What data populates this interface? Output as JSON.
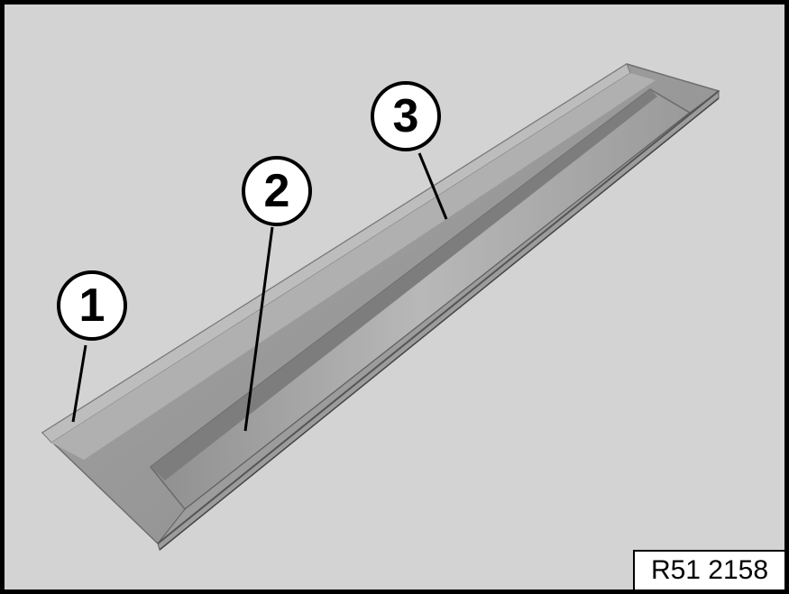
{
  "callouts": [
    {
      "label": "1"
    },
    {
      "label": "2"
    },
    {
      "label": "3"
    }
  ],
  "reference_code": "R51 2158"
}
